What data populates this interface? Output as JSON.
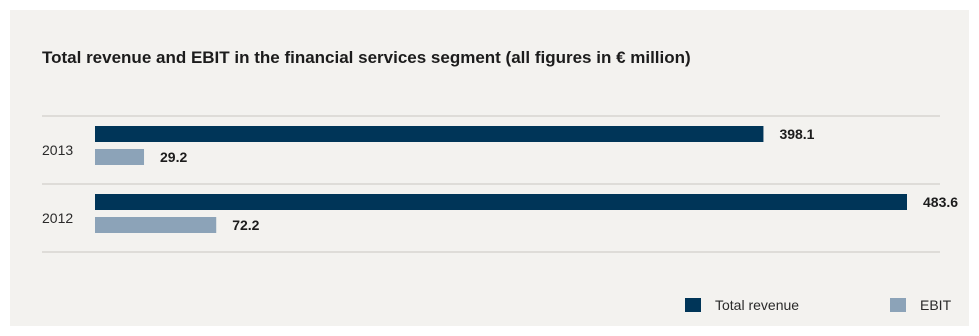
{
  "chart_data": {
    "type": "bar",
    "orientation": "horizontal",
    "title": "Total revenue and EBIT in the financial services segment (all figures in € million)",
    "categories": [
      "2013",
      "2012"
    ],
    "series": [
      {
        "name": "Total revenue",
        "values": [
          398.1,
          483.6
        ],
        "labels": [
          "398.1",
          "483.6"
        ],
        "color": "#003558"
      },
      {
        "name": "EBIT",
        "values": [
          29.2,
          72.2
        ],
        "labels": [
          "29.2",
          "72.2"
        ],
        "color": "#8ca3b8"
      }
    ],
    "xlim": [
      0,
      483.6
    ],
    "grid": false,
    "legend_position": "bottom-right",
    "divider_color": "#c9c7c2",
    "background_color": "#f3f2ef"
  }
}
